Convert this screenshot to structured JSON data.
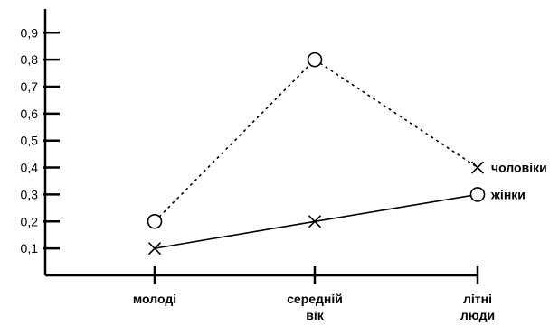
{
  "chart_data": {
    "type": "line",
    "categories": [
      "молоді",
      "середній вік",
      "літні люди"
    ],
    "y_ticks": [
      "0,1",
      "0,2",
      "0,3",
      "0,4",
      "0,5",
      "0,6",
      "0,7",
      "0,8",
      "0,9"
    ],
    "y_tick_values": [
      0.1,
      0.2,
      0.3,
      0.4,
      0.5,
      0.6,
      0.7,
      0.8,
      0.9
    ],
    "ylim": [
      0,
      1.0
    ],
    "grid": false,
    "legend": "series names printed at line ends (right)",
    "series": [
      {
        "name": "чоловіки",
        "values": [
          0.2,
          0.8,
          0.4
        ],
        "line_style": "dotted",
        "markers": [
          "circle",
          "circle",
          "cross"
        ]
      },
      {
        "name": "жінки",
        "values": [
          0.1,
          0.2,
          0.3
        ],
        "line_style": "solid",
        "markers": [
          "cross",
          "cross",
          "circle"
        ]
      }
    ]
  }
}
